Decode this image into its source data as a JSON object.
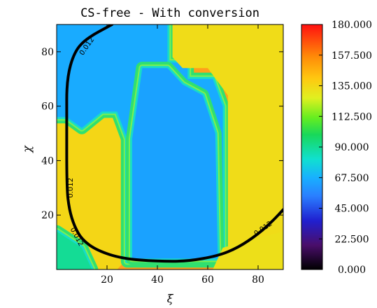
{
  "chart_data": {
    "type": "heatmap",
    "title": "CS-free - With conversion",
    "xlabel": "ξ",
    "ylabel": "χ",
    "xlim": [
      0,
      90
    ],
    "ylim": [
      0,
      90
    ],
    "x_ticks": [
      "20",
      "40",
      "60",
      "80"
    ],
    "y_ticks": [
      "20",
      "40",
      "60",
      "80"
    ],
    "colorbar": {
      "range": [
        0,
        180
      ],
      "tick_labels": [
        "0.000",
        "22.500",
        "45.000",
        "67.500",
        "90.000",
        "112.500",
        "135.000",
        "157.500",
        "180.000"
      ],
      "tick_values": [
        0,
        22.5,
        45,
        67.5,
        90,
        112.5,
        135,
        157.5,
        180
      ]
    },
    "regions": [
      {
        "name": "left-band",
        "value": 135,
        "polygon": [
          [
            0,
            0
          ],
          [
            0,
            56
          ],
          [
            4,
            56
          ],
          [
            10,
            52
          ],
          [
            18,
            58
          ],
          [
            24,
            58
          ],
          [
            28,
            48
          ],
          [
            28,
            4
          ],
          [
            24,
            0
          ]
        ]
      },
      {
        "name": "left-band-upper",
        "value": 130,
        "polygon": [
          [
            0,
            56
          ],
          [
            4,
            56
          ],
          [
            8,
            58
          ],
          [
            0,
            60
          ]
        ]
      },
      {
        "name": "central-basin",
        "value": 65,
        "polygon": [
          [
            0,
            90
          ],
          [
            44,
            90
          ],
          [
            44,
            76
          ],
          [
            52,
            76
          ],
          [
            52,
            70
          ],
          [
            62,
            70
          ],
          [
            66,
            60
          ],
          [
            66,
            3
          ],
          [
            28,
            3
          ],
          [
            28,
            48
          ],
          [
            24,
            58
          ],
          [
            18,
            58
          ],
          [
            10,
            52
          ],
          [
            4,
            56
          ],
          [
            0,
            56
          ]
        ]
      },
      {
        "name": "central-basin-deep",
        "value": 62,
        "polygon": [
          [
            30,
            4
          ],
          [
            64,
            4
          ],
          [
            63,
            50
          ],
          [
            58,
            64
          ],
          [
            50,
            68
          ],
          [
            44,
            74
          ],
          [
            34,
            74
          ],
          [
            30,
            48
          ]
        ]
      },
      {
        "name": "right-block",
        "value": 133,
        "polygon": [
          [
            46,
            90
          ],
          [
            90,
            90
          ],
          [
            90,
            0
          ],
          [
            68,
            0
          ],
          [
            68,
            64
          ],
          [
            60,
            74
          ],
          [
            50,
            74
          ],
          [
            46,
            78
          ]
        ]
      },
      {
        "name": "bottom-right",
        "value": 132,
        "polygon": [
          [
            62,
            0
          ],
          [
            90,
            0
          ],
          [
            90,
            14
          ],
          [
            74,
            10
          ],
          [
            66,
            8
          ]
        ]
      },
      {
        "name": "bottom-left-corner",
        "value": 90,
        "polygon": [
          [
            0,
            0
          ],
          [
            14,
            0
          ],
          [
            10,
            8
          ],
          [
            0,
            14
          ]
        ]
      }
    ],
    "contour": {
      "level_label": "0.012",
      "points": [
        [
          22,
          90
        ],
        [
          12,
          85
        ],
        [
          7,
          80
        ],
        [
          4,
          70
        ],
        [
          4,
          55
        ],
        [
          4,
          30
        ],
        [
          5,
          22
        ],
        [
          7,
          16
        ],
        [
          10,
          11
        ],
        [
          16,
          7
        ],
        [
          26,
          4
        ],
        [
          40,
          3
        ],
        [
          52,
          3
        ],
        [
          64,
          5
        ],
        [
          72,
          8
        ],
        [
          80,
          13
        ],
        [
          86,
          18
        ],
        [
          90,
          22
        ]
      ]
    },
    "contour_labels": [
      {
        "text": "0.012",
        "at": [
          5.5,
          30
        ],
        "angle": -90
      },
      {
        "text": "0.012",
        "at": [
          8,
          12
        ],
        "angle": 62
      },
      {
        "text": "0.012",
        "at": [
          82,
          15
        ],
        "angle": -35
      },
      {
        "text": "0.012",
        "at": [
          12,
          82
        ],
        "angle": -55
      }
    ]
  }
}
